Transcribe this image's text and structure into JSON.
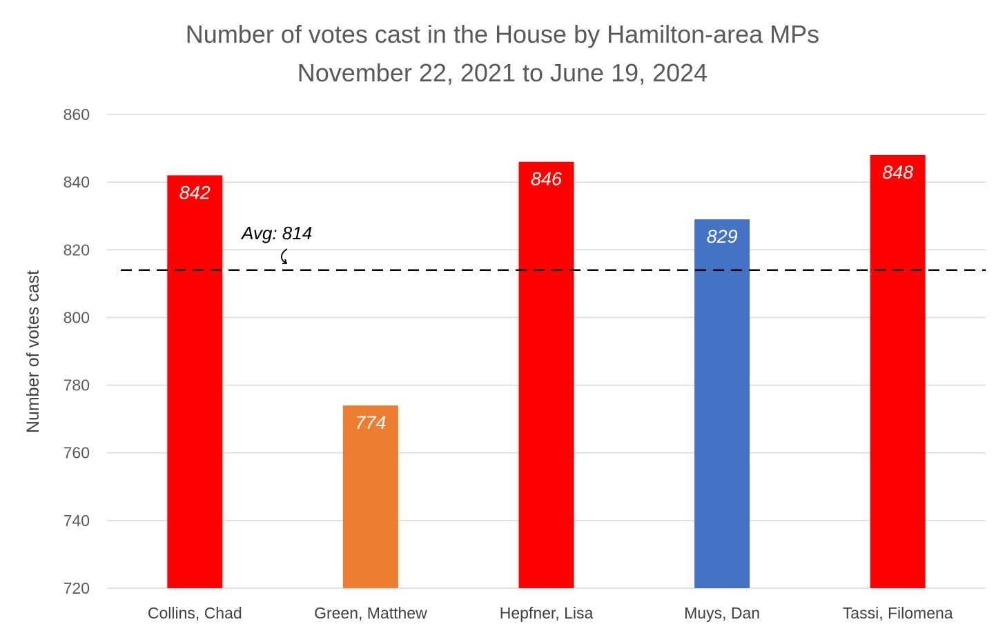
{
  "chart_data": {
    "type": "bar",
    "title": "Number of votes cast in the House by Hamilton-area MPs",
    "subtitle": "November 22, 2021 to June 19, 2024",
    "xlabel": "",
    "ylabel": "Number of votes cast",
    "ylim": [
      720,
      860
    ],
    "yticks": [
      720,
      740,
      760,
      780,
      800,
      820,
      840,
      860
    ],
    "grid": true,
    "legend": "none",
    "categories": [
      "Collins, Chad",
      "Green, Matthew",
      "Hepfner, Lisa",
      "Muys, Dan",
      "Tassi, Filomena"
    ],
    "values": [
      842,
      774,
      846,
      829,
      848
    ],
    "bar_colors": [
      "#ff0000",
      "#ed7d31",
      "#ff0000",
      "#4472c4",
      "#ff0000"
    ],
    "data_labels": [
      "842",
      "774",
      "846",
      "829",
      "848"
    ],
    "reference_line": {
      "value": 814,
      "label": "Avg: 814",
      "style": "dashed",
      "color": "#000000"
    }
  }
}
